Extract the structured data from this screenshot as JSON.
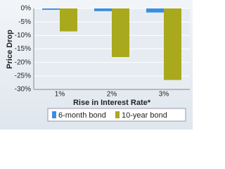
{
  "chart_data": {
    "type": "bar",
    "categories": [
      "1%",
      "2%",
      "3%"
    ],
    "series": [
      {
        "name": "6-month bond",
        "color": "#3a8ee0",
        "values": [
          -0.5,
          -1,
          -1.5
        ]
      },
      {
        "name": "10-year bond",
        "color": "#a9a91d",
        "values": [
          -8.5,
          -18,
          -26.5
        ]
      }
    ],
    "y_label": "Price Drop",
    "x_label": "Rise in Interest Rate*",
    "ylim": [
      -30,
      0
    ],
    "yticks": [
      {
        "value": 0,
        "label": "0%"
      },
      {
        "value": -5,
        "label": "-5%"
      },
      {
        "value": -10,
        "label": "-10%"
      },
      {
        "value": -15,
        "label": "-15%"
      },
      {
        "value": -20,
        "label": "-20%"
      },
      {
        "value": -25,
        "label": "-25%"
      },
      {
        "value": -30,
        "label": "-30%"
      }
    ],
    "grid": true,
    "legend": "bottom"
  }
}
